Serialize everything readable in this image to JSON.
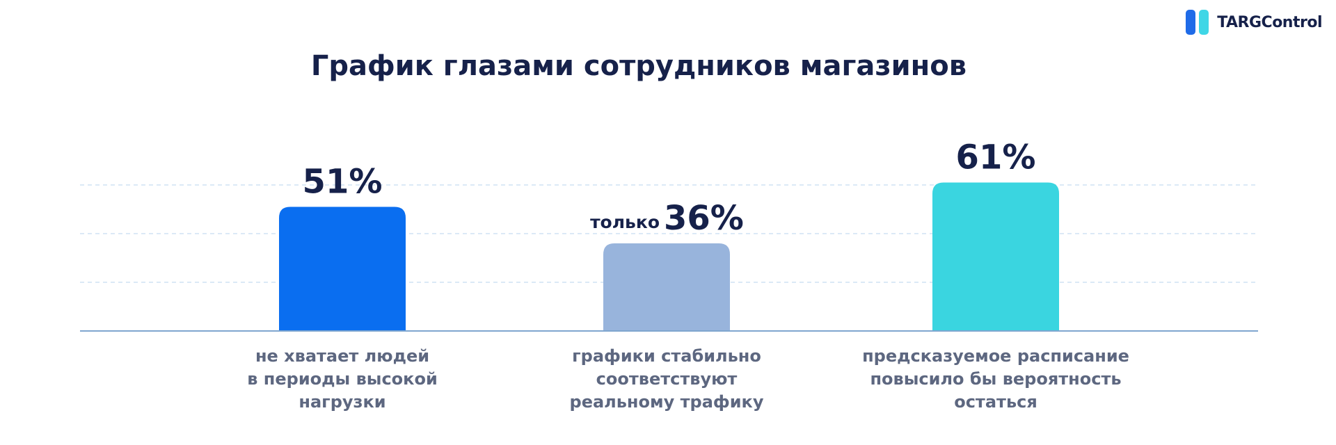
{
  "brand": {
    "name": "TARGControl",
    "colors": {
      "left": "#1f6be8",
      "right": "#3fd6e6"
    }
  },
  "title": "График глазами сотрудников магазинов",
  "chart_data": {
    "type": "bar",
    "title": "График глазами сотрудников магазинов",
    "xlabel": "",
    "ylabel": "",
    "ylim": [
      0,
      80
    ],
    "grid": true,
    "categories": [
      "не хватает людей в периоды высокой нагрузки",
      "графики стабильно соответствуют реальному трафику",
      "предсказуемое расписание повысило бы вероятность остаться"
    ],
    "category_lines": [
      [
        "не хватает людей",
        "в периоды высокой",
        "нагрузки"
      ],
      [
        "графики стабильно",
        "соответствуют",
        "реальному трафику"
      ],
      [
        "предсказуемое расписание",
        "повысило бы вероятность",
        "остаться"
      ]
    ],
    "values": [
      51,
      36,
      61
    ],
    "value_labels": [
      "51%",
      "36%",
      "61%"
    ],
    "value_prefixes": [
      "",
      "только",
      ""
    ],
    "colors": [
      "#0a6ef0",
      "#98b4dc",
      "#3ad5e0"
    ]
  }
}
